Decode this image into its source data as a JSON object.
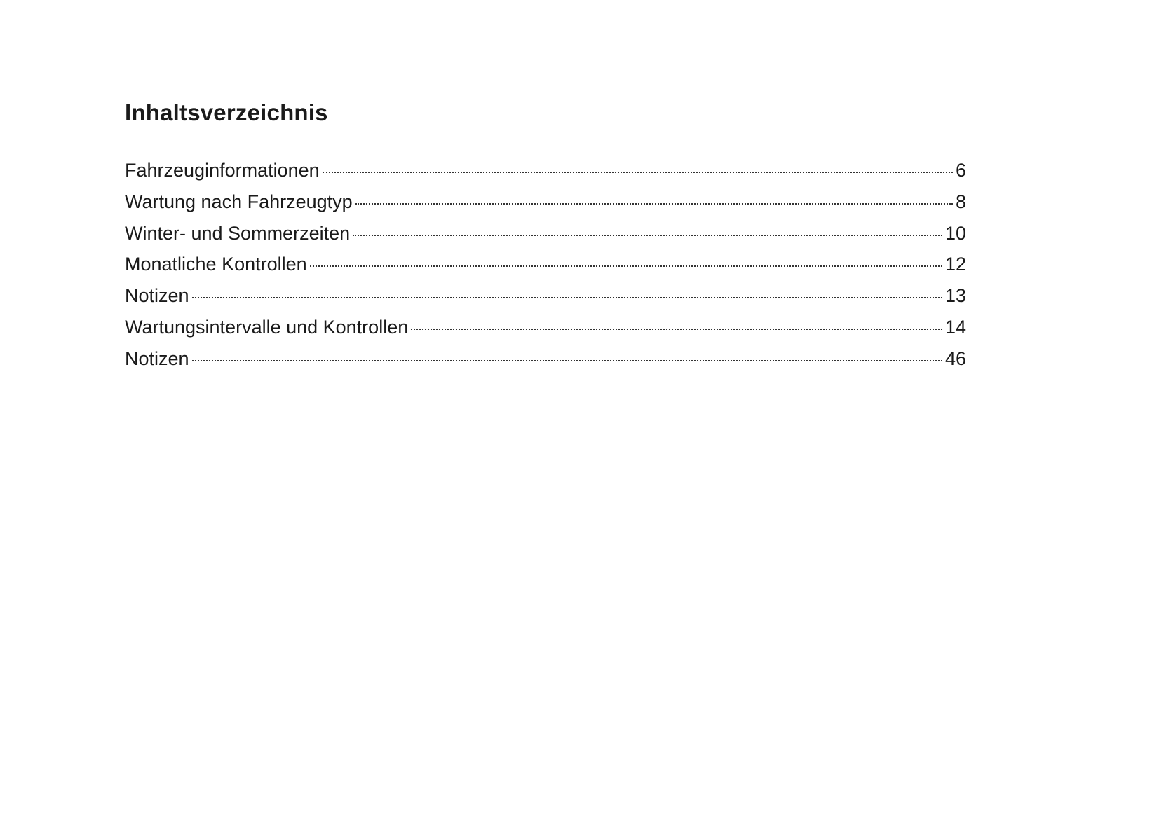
{
  "title": "Inhaltsverzeichnis",
  "entries": [
    {
      "label": "Fahrzeuginformationen",
      "page": "6"
    },
    {
      "label": "Wartung nach Fahrzeugtyp",
      "page": "8"
    },
    {
      "label": "Winter- und Sommerzeiten",
      "page": "10"
    },
    {
      "label": "Monatliche Kontrollen",
      "page": "12"
    },
    {
      "label": "Notizen",
      "page": "13"
    },
    {
      "label": "Wartungsintervalle und Kontrollen",
      "page": "14"
    },
    {
      "label": "Notizen",
      "page": "46"
    }
  ]
}
